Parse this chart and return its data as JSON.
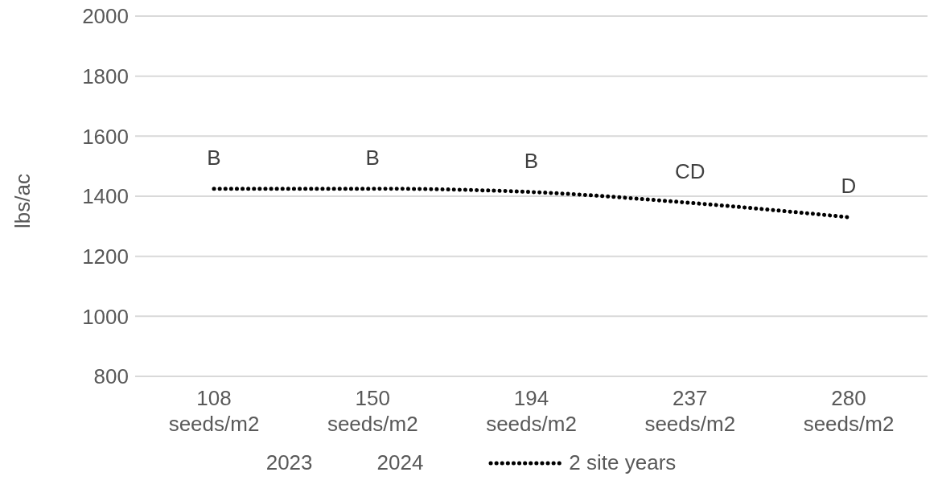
{
  "chart_data": {
    "type": "line",
    "ylabel": "lbs/ac",
    "categories": [
      "108 seeds/m2",
      "150 seeds/m2",
      "194 seeds/m2",
      "237 seeds/m2",
      "280 seeds/m2"
    ],
    "series": [
      {
        "name": "2 site years",
        "color": "#000000",
        "line_style": "dotted",
        "marker": "none",
        "values": [
          1425,
          1425,
          1414,
          1378,
          1330
        ]
      }
    ],
    "ylim": [
      800,
      2000
    ],
    "yticks": [
      800,
      1000,
      1200,
      1400,
      1600,
      1800,
      2000
    ],
    "grid": "y",
    "legend": "bottom",
    "annotations": [
      "B",
      "B",
      "B",
      "CD",
      "D",
      "2023",
      "2024"
    ]
  }
}
